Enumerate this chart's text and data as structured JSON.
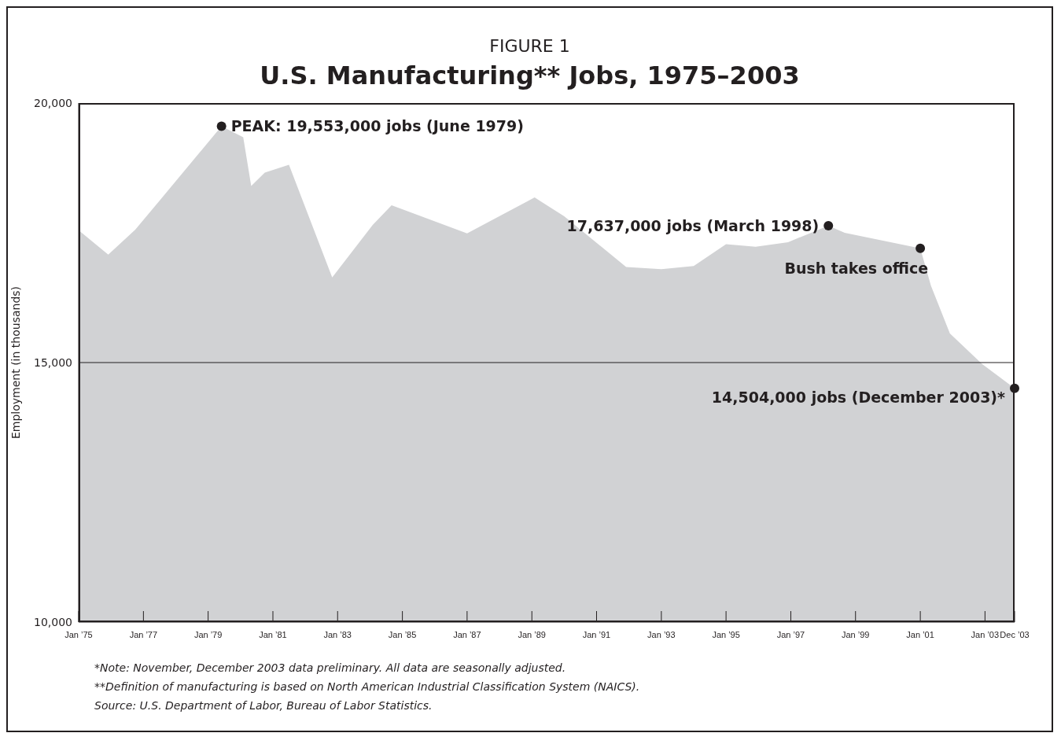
{
  "chart_data": {
    "type": "area",
    "subtitle": "FIGURE 1",
    "title": "U.S. Manufacturing** Jobs, 1975–2003",
    "ylabel": "Employment (in thousands)",
    "x": [
      "1975-01",
      "1975-12",
      "1976-10",
      "1977-04",
      "1979-06",
      "1980-02",
      "1980-05",
      "1980-10",
      "1981-07",
      "1982-11",
      "1984-02",
      "1984-09",
      "1987-01",
      "1988-02",
      "1989-02",
      "1990-01",
      "1991-12",
      "1993-01",
      "1994-01",
      "1995-01",
      "1995-12",
      "1996-12",
      "1998-03",
      "1998-09",
      "2001-01",
      "2001-05",
      "2001-12",
      "2002-12",
      "2003-12"
    ],
    "series": [
      {
        "color": "#d1d2d4",
        "values": [
          17550,
          17080,
          17560,
          17930,
          19553,
          19340,
          18400,
          18660,
          18810,
          16640,
          17650,
          18030,
          17490,
          17850,
          18180,
          17820,
          16840,
          16800,
          16860,
          17280,
          17230,
          17320,
          17637,
          17500,
          17200,
          16480,
          15560,
          14970,
          14504
        ]
      }
    ],
    "xlim": [
      "1975-01",
      "2003-12"
    ],
    "xticks": [
      {
        "value": "1975-01",
        "label": "Jan ’75"
      },
      {
        "value": "1977-01",
        "label": "Jan ’77"
      },
      {
        "value": "1979-01",
        "label": "Jan ’79"
      },
      {
        "value": "1981-01",
        "label": "Jan ’81"
      },
      {
        "value": "1983-01",
        "label": "Jan ’83"
      },
      {
        "value": "1985-01",
        "label": "Jan ’85"
      },
      {
        "value": "1987-01",
        "label": "Jan ’87"
      },
      {
        "value": "1989-01",
        "label": "Jan ’89"
      },
      {
        "value": "1991-01",
        "label": "Jan ’91"
      },
      {
        "value": "1993-01",
        "label": "Jan ’93"
      },
      {
        "value": "1995-01",
        "label": "Jan ’95"
      },
      {
        "value": "1997-01",
        "label": "Jan ’97"
      },
      {
        "value": "1999-01",
        "label": "Jan ’99"
      },
      {
        "value": "2001-01",
        "label": "Jan ’01"
      },
      {
        "value": "2003-01",
        "label": "Jan ’03"
      },
      {
        "value": "2003-12",
        "label": "Dec ’03"
      }
    ],
    "ylim": [
      10000,
      20000
    ],
    "yticks": [
      {
        "value": 10000,
        "label": "10,000"
      },
      {
        "value": 15000,
        "label": "15,000"
      },
      {
        "value": 20000,
        "label": "20,000"
      }
    ],
    "grid": "y",
    "legend": false,
    "marker": "none",
    "annotations": [
      {
        "text": "PEAK: 19,553,000 jobs (June 1979)",
        "x": "1979-06",
        "y": 19553
      },
      {
        "text": "17,637,000 jobs (March 1998)",
        "x": "1998-03",
        "y": 17637
      },
      {
        "text": "Bush takes office",
        "x": "2001-01",
        "y": 17200
      },
      {
        "text": "14,504,000 jobs (December 2003)*",
        "x": "2003-12",
        "y": 14504
      },
      "*Note: November, December 2003 data preliminary. All data are seasonally adjusted.",
      "**Definition of manufacturing is based on North American Industrial Classification System (NAICS).",
      "Source: U.S. Department of Labor, Bureau of Labor Statistics."
    ]
  }
}
